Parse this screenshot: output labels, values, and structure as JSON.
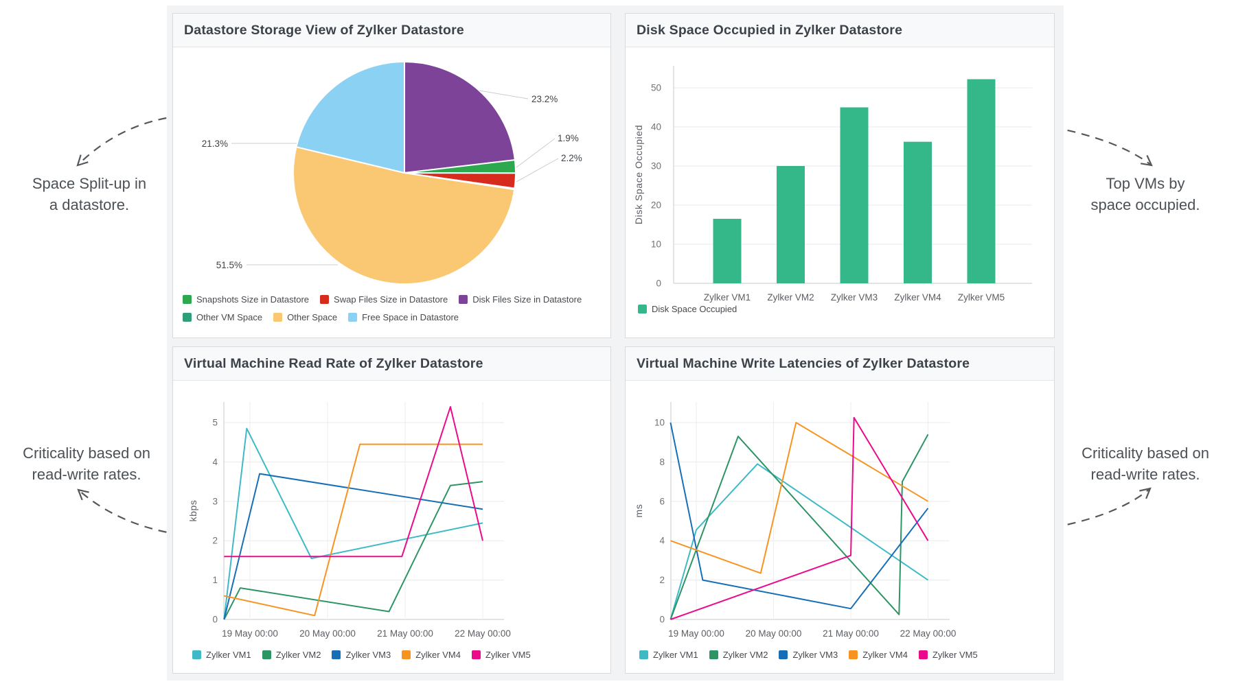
{
  "annotations": {
    "top_left": {
      "lines": [
        "Space Split-up in",
        "a datastore."
      ]
    },
    "top_right": {
      "lines": [
        "Top VMs by",
        "space occupied."
      ]
    },
    "bottom_left": {
      "lines": [
        "Criticality based on",
        "read-write rates."
      ]
    },
    "bottom_right": {
      "lines": [
        "Criticality based on",
        "read-write rates."
      ]
    }
  },
  "chart_data": [
    {
      "id": "pie",
      "type": "pie",
      "title": "Datastore Storage View of Zylker Datastore",
      "slices": [
        {
          "label": "Disk Files Size in Datastore",
          "pct": 23.2,
          "pct_label": "23.2%",
          "color": "#7C4399"
        },
        {
          "label": "Snapshots Size in Datastore",
          "pct": 1.9,
          "pct_label": "1.9%",
          "color": "#2EA84F"
        },
        {
          "label": "Swap Files Size in Datastore",
          "pct": 2.2,
          "pct_label": "2.2%",
          "color": "#D62B1D"
        },
        {
          "label": "Other VM Space",
          "pct": 0.15,
          "pct_label": "",
          "color": "#2E9E7C"
        },
        {
          "label": "Other Space",
          "pct": 51.5,
          "pct_label": "51.5%",
          "color": "#FAC873"
        },
        {
          "label": "Free Space in Datastore",
          "pct": 21.3,
          "pct_label": "21.3%",
          "color": "#8AD1F4"
        }
      ],
      "legend_rows": [
        [
          "Snapshots Size in Datastore",
          "Swap Files Size in Datastore",
          "Disk Files Size in Datastore"
        ],
        [
          "Other VM Space",
          "Other Space",
          "Free Space in Datastore"
        ]
      ],
      "start_angle_deg": 0,
      "direction": "clockwise"
    },
    {
      "id": "bar",
      "type": "bar",
      "title": "Disk Space Occupied in Zylker Datastore",
      "categories": [
        "Zylker VM1",
        "Zylker VM2",
        "Zylker VM3",
        "Zylker VM4",
        "Zylker VM5"
      ],
      "values": [
        16.5,
        30,
        45,
        36.2,
        52.2
      ],
      "xlabel": "",
      "ylabel": "Disk Space Occupied",
      "yticks": [
        0,
        10,
        20,
        30,
        40,
        50
      ],
      "ylim": [
        0,
        55.5
      ],
      "grid": true,
      "color": "#35B889",
      "legend": [
        {
          "label": "Disk Space Occupied",
          "color": "#35B889"
        }
      ],
      "legend_position": "bottom-left"
    },
    {
      "id": "read",
      "type": "line",
      "title": "Virtual Machine Read Rate of Zylker Datastore",
      "ylabel": "kbps",
      "yticks": [
        0,
        1,
        2,
        3,
        4,
        5
      ],
      "ylim": [
        0,
        5.5
      ],
      "x_unit": "hours from chart start",
      "xlim": [
        0,
        80
      ],
      "xticks": [
        {
          "x": 8,
          "label": "19 May 00:00"
        },
        {
          "x": 32,
          "label": "20 May 00:00"
        },
        {
          "x": 56,
          "label": "21 May 00:00"
        },
        {
          "x": 80,
          "label": "22 May 00:00"
        }
      ],
      "grid": true,
      "legend_position": "bottom-left",
      "series": [
        {
          "name": "Zylker VM1",
          "color": "#3EB9C6",
          "points": [
            [
              0,
              0
            ],
            [
              7,
              4.85
            ],
            [
              27,
              1.55
            ],
            [
              80,
              2.45
            ]
          ]
        },
        {
          "name": "Zylker VM2",
          "color": "#2D9464",
          "points": [
            [
              0,
              0
            ],
            [
              5,
              0.8
            ],
            [
              51,
              0.2
            ],
            [
              70,
              3.4
            ],
            [
              80,
              3.5
            ]
          ]
        },
        {
          "name": "Zylker VM3",
          "color": "#166FB6",
          "points": [
            [
              0,
              0
            ],
            [
              11,
              3.7
            ],
            [
              80,
              2.8
            ]
          ]
        },
        {
          "name": "Zylker VM4",
          "color": "#F79421",
          "points": [
            [
              0,
              0.6
            ],
            [
              28,
              0.1
            ],
            [
              42,
              4.45
            ],
            [
              80,
              4.45
            ]
          ]
        },
        {
          "name": "Zylker VM5",
          "color": "#EB0A8C",
          "points": [
            [
              0,
              1.6
            ],
            [
              55,
              1.6
            ],
            [
              70,
              5.4
            ],
            [
              80,
              2.0
            ]
          ]
        }
      ]
    },
    {
      "id": "write",
      "type": "line",
      "title": "Virtual Machine Write Latencies of Zylker Datastore",
      "ylabel": "ms",
      "yticks": [
        0,
        2,
        4,
        6,
        8,
        10
      ],
      "ylim": [
        0,
        11
      ],
      "x_unit": "hours from chart start",
      "xlim": [
        0,
        80
      ],
      "xticks": [
        {
          "x": 8,
          "label": "19 May 00:00"
        },
        {
          "x": 32,
          "label": "20 May 00:00"
        },
        {
          "x": 56,
          "label": "21 May 00:00"
        },
        {
          "x": 80,
          "label": "22 May 00:00"
        }
      ],
      "grid": true,
      "legend_position": "bottom-left",
      "series": [
        {
          "name": "Zylker VM1",
          "color": "#3EB9C6",
          "points": [
            [
              0,
              0
            ],
            [
              8,
              4.55
            ],
            [
              27,
              7.9
            ],
            [
              80,
              2.0
            ]
          ]
        },
        {
          "name": "Zylker VM2",
          "color": "#2D9464",
          "points": [
            [
              0,
              0
            ],
            [
              21,
              9.3
            ],
            [
              71,
              0.25
            ],
            [
              72,
              7.0
            ],
            [
              80,
              9.4
            ]
          ]
        },
        {
          "name": "Zylker VM3",
          "color": "#166FB6",
          "points": [
            [
              0,
              10
            ],
            [
              10,
              2.0
            ],
            [
              56,
              0.55
            ],
            [
              80,
              5.65
            ]
          ]
        },
        {
          "name": "Zylker VM4",
          "color": "#F79421",
          "points": [
            [
              0,
              4.0
            ],
            [
              28,
              2.35
            ],
            [
              39,
              10.0
            ],
            [
              80,
              6.0
            ]
          ]
        },
        {
          "name": "Zylker VM5",
          "color": "#EB0A8C",
          "points": [
            [
              0,
              0
            ],
            [
              56,
              3.25
            ],
            [
              57,
              10.25
            ],
            [
              80,
              4.0
            ]
          ]
        }
      ]
    }
  ]
}
